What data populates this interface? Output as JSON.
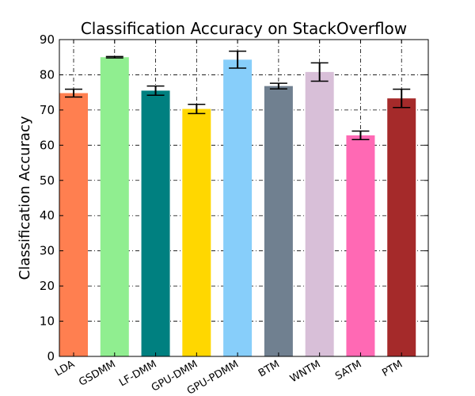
{
  "chart_data": {
    "type": "bar",
    "title": "Classification Accuracy on StackOverflow",
    "xlabel": "",
    "ylabel": "Classification Accuracy",
    "ylim": [
      0,
      90
    ],
    "yticks": [
      0,
      10,
      20,
      30,
      40,
      50,
      60,
      70,
      80,
      90
    ],
    "grid": true,
    "categories": [
      "LDA",
      "GSDMM",
      "LF-DMM",
      "GPU-DMM",
      "GPU-PDMM",
      "BTM",
      "WNTM",
      "SATM",
      "PTM"
    ],
    "values": [
      74.8,
      85.0,
      75.5,
      70.3,
      84.3,
      76.8,
      80.8,
      62.8,
      73.3
    ],
    "errors": [
      1.1,
      0.2,
      1.3,
      1.3,
      2.4,
      0.8,
      2.6,
      1.2,
      2.6
    ],
    "colors": [
      "#FF7F50",
      "#90EE90",
      "#008080",
      "#FFD700",
      "#87CEFA",
      "#708090",
      "#D8BFD8",
      "#FF69B4",
      "#A52A2A"
    ]
  }
}
